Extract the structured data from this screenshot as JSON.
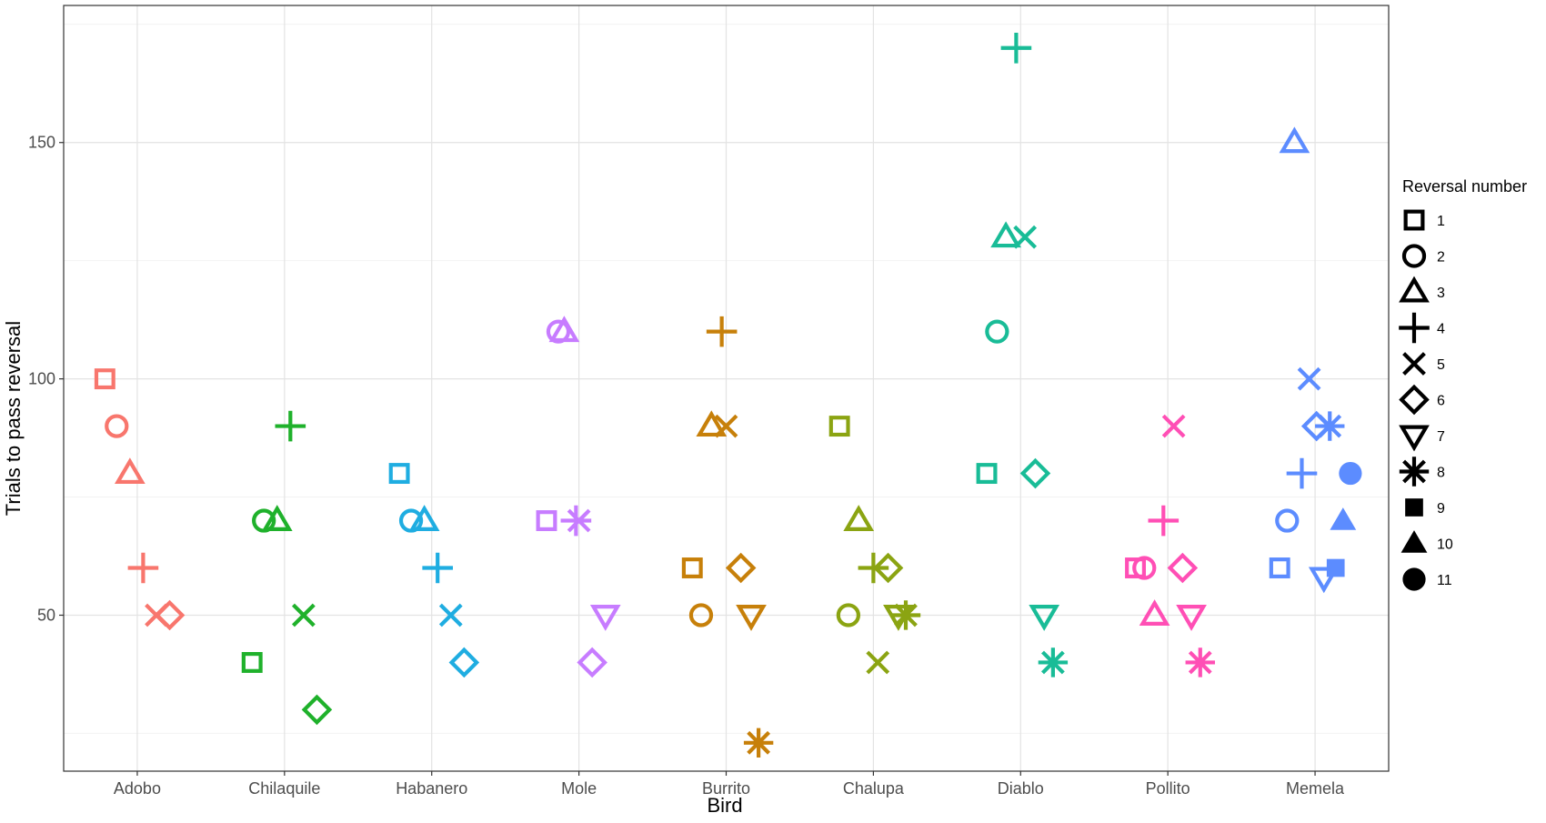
{
  "chart_data": {
    "type": "scatter",
    "xlabel": "Bird",
    "ylabel": "Trials to pass reversal",
    "categories": [
      "Adobo",
      "Chilaquile",
      "Habanero",
      "Mole",
      "Burrito",
      "Chalupa",
      "Diablo",
      "Pollito",
      "Memela"
    ],
    "ylim": [
      17,
      179
    ],
    "y_ticks": [
      50,
      100,
      150
    ],
    "grid": true,
    "legend": {
      "title": "Reversal number",
      "placement": "right",
      "entries": [
        {
          "label": "1",
          "shape": "square-open"
        },
        {
          "label": "2",
          "shape": "circle-open"
        },
        {
          "label": "3",
          "shape": "triangle-open"
        },
        {
          "label": "4",
          "shape": "plus"
        },
        {
          "label": "5",
          "shape": "cross"
        },
        {
          "label": "6",
          "shape": "diamond-open"
        },
        {
          "label": "7",
          "shape": "triangle-down-open"
        },
        {
          "label": "8",
          "shape": "asterisk"
        },
        {
          "label": "9",
          "shape": "square-filled"
        },
        {
          "label": "10",
          "shape": "triangle-filled"
        },
        {
          "label": "11",
          "shape": "circle-filled"
        }
      ]
    },
    "colors": {
      "Adobo": "#F8766D",
      "Chilaquile": "#1FB12B",
      "Habanero": "#1FADE1",
      "Mole": "#C77CFF",
      "Burrito": "#C7800A",
      "Chalupa": "#8BA412",
      "Diablo": "#19BC97",
      "Pollito": "#FF4FB5",
      "Memela": "#5C8CFF"
    },
    "series": [
      {
        "bird": "Adobo",
        "points": [
          {
            "reversal": 1,
            "y": 100,
            "jitter": -0.22
          },
          {
            "reversal": 2,
            "y": 90,
            "jitter": -0.14
          },
          {
            "reversal": 3,
            "y": 80,
            "jitter": -0.05
          },
          {
            "reversal": 4,
            "y": 60,
            "jitter": 0.04
          },
          {
            "reversal": 5,
            "y": 50,
            "jitter": 0.13
          },
          {
            "reversal": 6,
            "y": 50,
            "jitter": 0.22
          }
        ]
      },
      {
        "bird": "Chilaquile",
        "points": [
          {
            "reversal": 1,
            "y": 40,
            "jitter": -0.22
          },
          {
            "reversal": 2,
            "y": 70,
            "jitter": -0.14
          },
          {
            "reversal": 3,
            "y": 70,
            "jitter": -0.05
          },
          {
            "reversal": 4,
            "y": 90,
            "jitter": 0.04
          },
          {
            "reversal": 5,
            "y": 50,
            "jitter": 0.13
          },
          {
            "reversal": 6,
            "y": 30,
            "jitter": 0.22
          }
        ]
      },
      {
        "bird": "Habanero",
        "points": [
          {
            "reversal": 1,
            "y": 80,
            "jitter": -0.22
          },
          {
            "reversal": 2,
            "y": 70,
            "jitter": -0.14
          },
          {
            "reversal": 3,
            "y": 70,
            "jitter": -0.05
          },
          {
            "reversal": 4,
            "y": 60,
            "jitter": 0.04
          },
          {
            "reversal": 5,
            "y": 50,
            "jitter": 0.13
          },
          {
            "reversal": 6,
            "y": 40,
            "jitter": 0.22
          }
        ]
      },
      {
        "bird": "Mole",
        "points": [
          {
            "reversal": 1,
            "y": 70,
            "jitter": -0.22
          },
          {
            "reversal": 2,
            "y": 110,
            "jitter": -0.14
          },
          {
            "reversal": 3,
            "y": 110,
            "jitter": -0.1
          },
          {
            "reversal": 4,
            "y": 70,
            "jitter": -0.02
          },
          {
            "reversal": 5,
            "y": 70,
            "jitter": 0.0
          },
          {
            "reversal": 6,
            "y": 40,
            "jitter": 0.09
          },
          {
            "reversal": 7,
            "y": 50,
            "jitter": 0.18
          }
        ]
      },
      {
        "bird": "Burrito",
        "points": [
          {
            "reversal": 1,
            "y": 60,
            "jitter": -0.23
          },
          {
            "reversal": 2,
            "y": 50,
            "jitter": -0.17
          },
          {
            "reversal": 3,
            "y": 90,
            "jitter": -0.1
          },
          {
            "reversal": 4,
            "y": 110,
            "jitter": -0.03
          },
          {
            "reversal": 5,
            "y": 90,
            "jitter": 0.0
          },
          {
            "reversal": 6,
            "y": 60,
            "jitter": 0.1
          },
          {
            "reversal": 7,
            "y": 50,
            "jitter": 0.17
          },
          {
            "reversal": 8,
            "y": 23,
            "jitter": 0.22
          }
        ]
      },
      {
        "bird": "Chalupa",
        "points": [
          {
            "reversal": 1,
            "y": 90,
            "jitter": -0.23
          },
          {
            "reversal": 2,
            "y": 50,
            "jitter": -0.17
          },
          {
            "reversal": 3,
            "y": 70,
            "jitter": -0.1
          },
          {
            "reversal": 4,
            "y": 60,
            "jitter": -0.0
          },
          {
            "reversal": 5,
            "y": 40,
            "jitter": 0.03
          },
          {
            "reversal": 6,
            "y": 60,
            "jitter": 0.1
          },
          {
            "reversal": 7,
            "y": 50,
            "jitter": 0.17
          },
          {
            "reversal": 8,
            "y": 50,
            "jitter": 0.22
          }
        ]
      },
      {
        "bird": "Diablo",
        "points": [
          {
            "reversal": 1,
            "y": 80,
            "jitter": -0.23
          },
          {
            "reversal": 2,
            "y": 110,
            "jitter": -0.16
          },
          {
            "reversal": 3,
            "y": 130,
            "jitter": -0.1
          },
          {
            "reversal": 4,
            "y": 170,
            "jitter": -0.03
          },
          {
            "reversal": 5,
            "y": 130,
            "jitter": 0.03
          },
          {
            "reversal": 6,
            "y": 80,
            "jitter": 0.1
          },
          {
            "reversal": 7,
            "y": 50,
            "jitter": 0.16
          },
          {
            "reversal": 8,
            "y": 40,
            "jitter": 0.22
          }
        ]
      },
      {
        "bird": "Pollito",
        "points": [
          {
            "reversal": 1,
            "y": 60,
            "jitter": -0.22
          },
          {
            "reversal": 2,
            "y": 60,
            "jitter": -0.16
          },
          {
            "reversal": 3,
            "y": 50,
            "jitter": -0.09
          },
          {
            "reversal": 4,
            "y": 70,
            "jitter": -0.03
          },
          {
            "reversal": 5,
            "y": 90,
            "jitter": 0.04
          },
          {
            "reversal": 6,
            "y": 60,
            "jitter": 0.1
          },
          {
            "reversal": 7,
            "y": 50,
            "jitter": 0.16
          },
          {
            "reversal": 8,
            "y": 40,
            "jitter": 0.22
          }
        ]
      },
      {
        "bird": "Memela",
        "points": [
          {
            "reversal": 1,
            "y": 60,
            "jitter": -0.24
          },
          {
            "reversal": 2,
            "y": 70,
            "jitter": -0.19
          },
          {
            "reversal": 3,
            "y": 150,
            "jitter": -0.14
          },
          {
            "reversal": 4,
            "y": 80,
            "jitter": -0.09
          },
          {
            "reversal": 5,
            "y": 100,
            "jitter": -0.04
          },
          {
            "reversal": 6,
            "y": 90,
            "jitter": 0.01
          },
          {
            "reversal": 7,
            "y": 58,
            "jitter": 0.06
          },
          {
            "reversal": 8,
            "y": 90,
            "jitter": 0.1
          },
          {
            "reversal": 9,
            "y": 60,
            "jitter": 0.14
          },
          {
            "reversal": 10,
            "y": 70,
            "jitter": 0.19
          },
          {
            "reversal": 11,
            "y": 80,
            "jitter": 0.24
          }
        ]
      }
    ]
  }
}
